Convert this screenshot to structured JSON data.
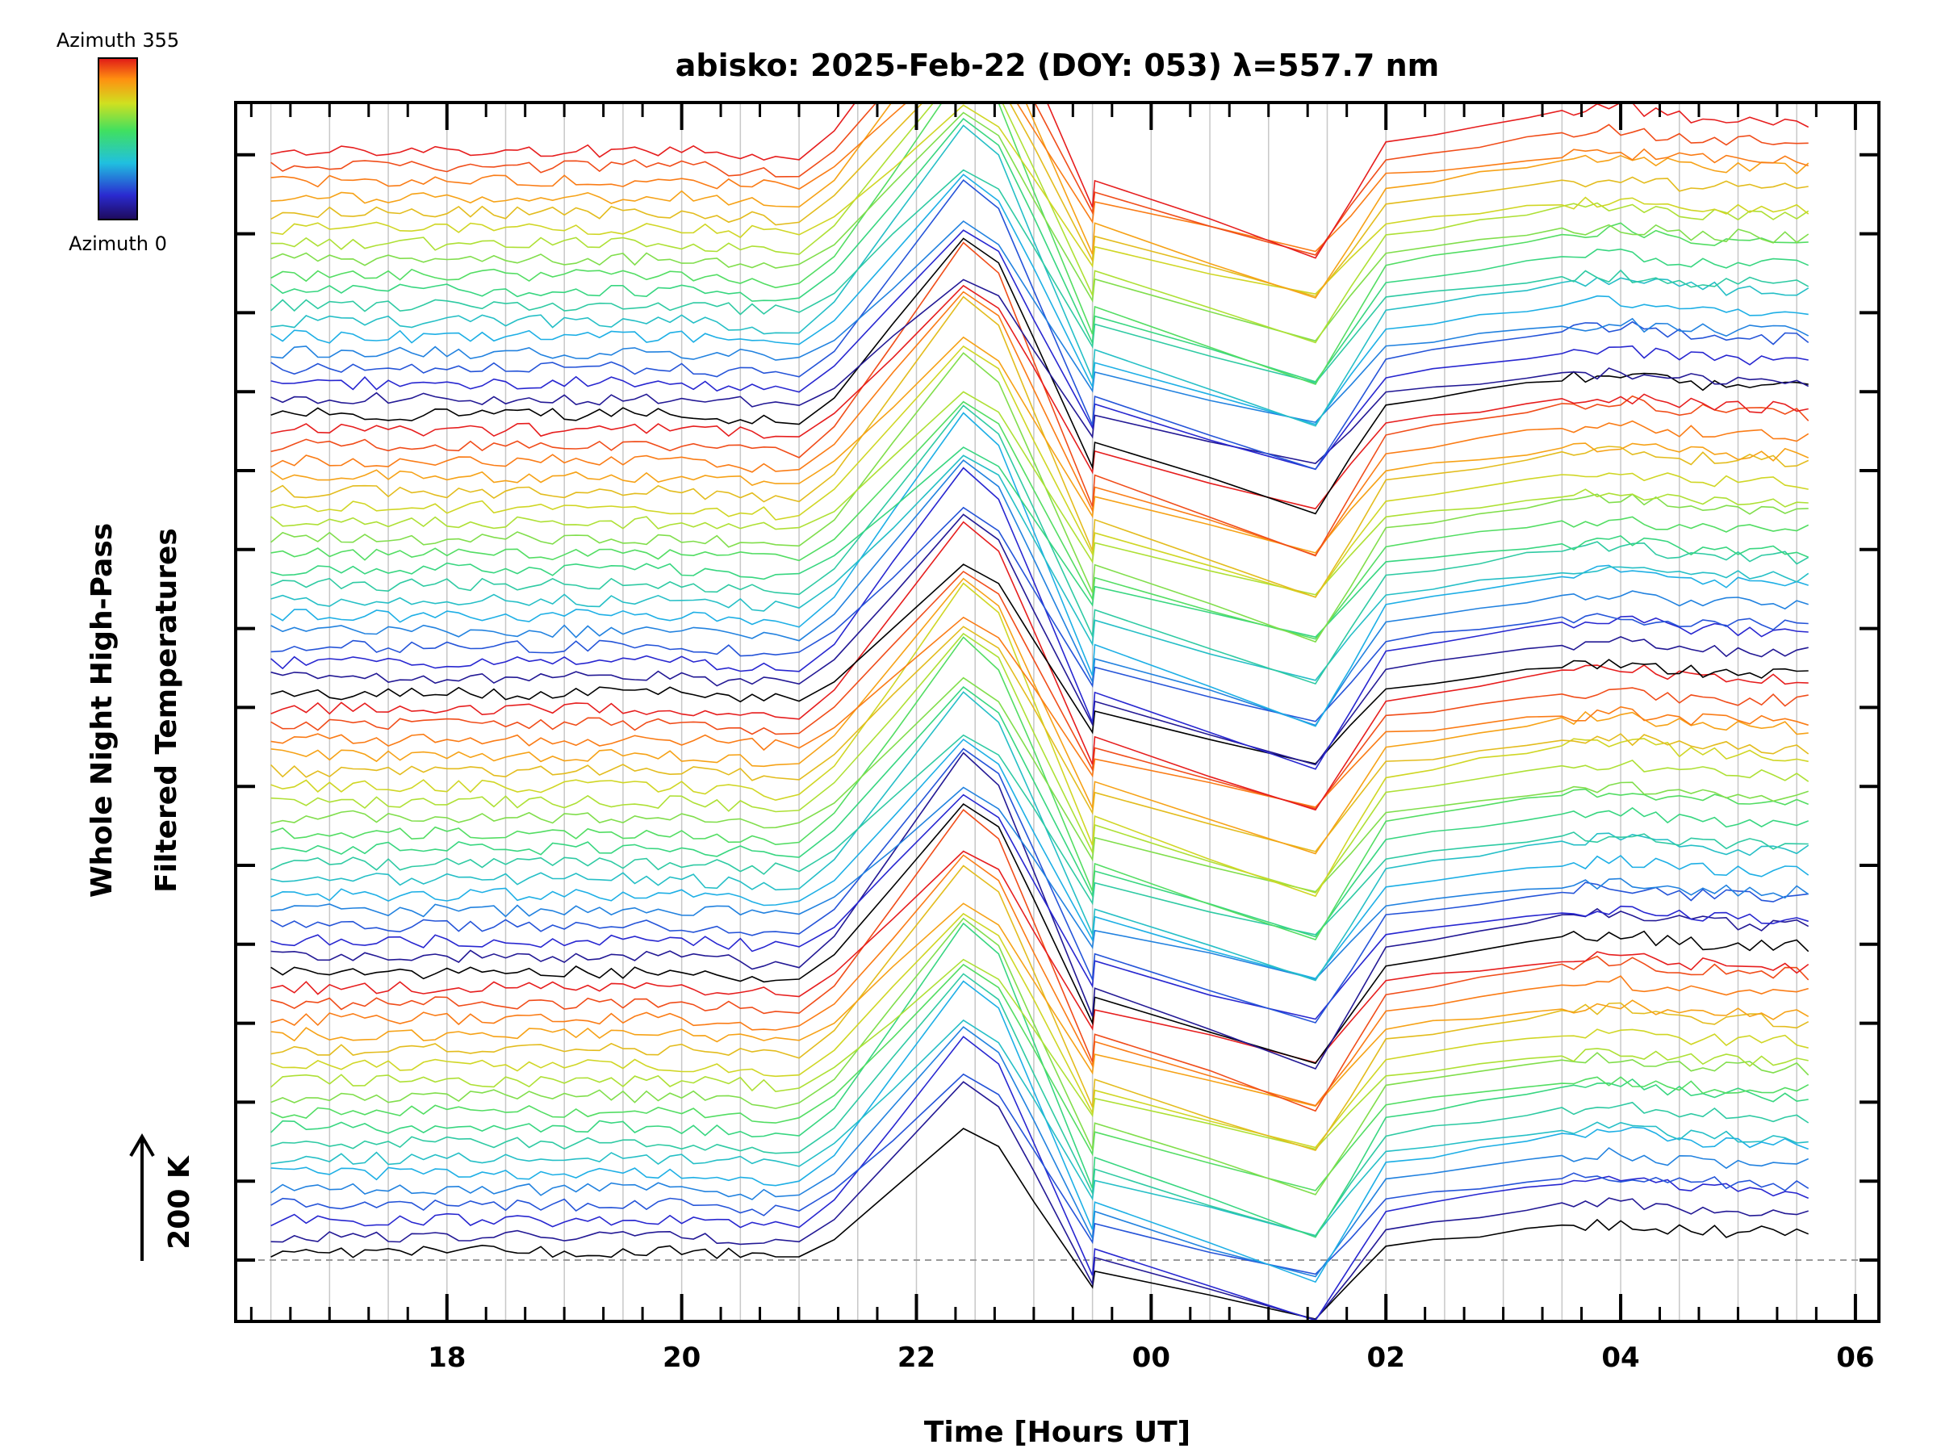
{
  "chart_data": {
    "type": "line",
    "title": "abisko: 2025-Feb-22 (DOY: 053) λ=557.7 nm",
    "xlabel": "Time [Hours UT]",
    "ylabel_lines": [
      "Whole Night High-Pass",
      "Filtered Temperatures"
    ],
    "x_ticks": [
      "18",
      "20",
      "22",
      "00",
      "02",
      "04",
      "06"
    ],
    "x_range_hours": [
      16.2,
      30.2
    ],
    "x_tick_values": [
      18,
      20,
      22,
      24,
      26,
      28,
      30
    ],
    "data_start_hour": 16.5,
    "data_end_hour": 29.6,
    "scale_marker": "200 K",
    "colorbar": {
      "top_label": "Azimuth 355",
      "bottom_label": "Azimuth 0",
      "colormap": "rainbow"
    },
    "series_count": 72,
    "azimuth_step_deg": 5,
    "baseline_dashed": true,
    "grid": "vertical",
    "grid_color": "#c8c8c8",
    "notable_features_hours": {
      "rise_start": 21.0,
      "peak": 22.4,
      "drop_end": 23.5,
      "trough": 25.4,
      "recovery": 26.0
    }
  }
}
